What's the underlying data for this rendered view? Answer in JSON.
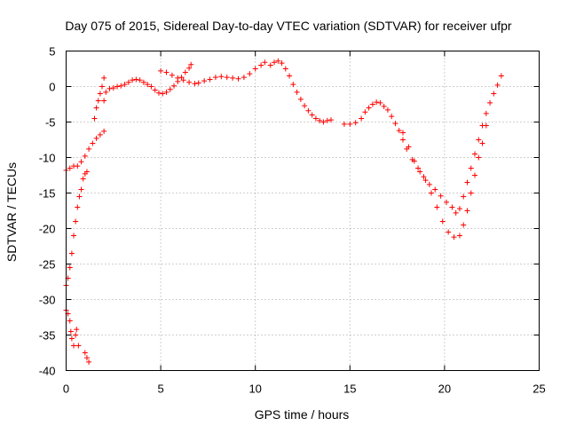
{
  "chart_data": {
    "type": "scatter",
    "title": "Day 075 of 2015, Sidereal Day-to-day VTEC variation (SDTVAR) for receiver ufpr",
    "xlabel": "GPS time / hours",
    "ylabel": "SDTVAR / TECUs",
    "xlim": [
      0,
      25
    ],
    "ylim": [
      -40,
      5
    ],
    "grid": true,
    "marker": "+",
    "x_ticks": [
      "0",
      "5",
      "10",
      "15",
      "20",
      "25"
    ],
    "y_ticks": [
      "5",
      "0",
      "-5",
      "-10",
      "-15",
      "-20",
      "-25",
      "-30",
      "-35",
      "-40"
    ],
    "series": [
      {
        "color": "#ff0000",
        "points": [
          [
            0.0,
            -11.8
          ],
          [
            0.2,
            -11.5
          ],
          [
            0.4,
            -11.2
          ],
          [
            0.6,
            -11.2
          ],
          [
            0.8,
            -10.6
          ],
          [
            1.0,
            -9.8
          ],
          [
            1.2,
            -8.8
          ],
          [
            1.4,
            -8.0
          ],
          [
            1.6,
            -7.3
          ],
          [
            1.8,
            -6.8
          ],
          [
            2.0,
            -6.3
          ],
          [
            2.0,
            -2.0
          ],
          [
            2.1,
            -0.8
          ],
          [
            2.3,
            -0.3
          ],
          [
            2.5,
            -0.2
          ],
          [
            2.7,
            0.0
          ],
          [
            2.9,
            0.1
          ],
          [
            3.1,
            0.3
          ],
          [
            3.3,
            0.6
          ],
          [
            3.5,
            0.9
          ],
          [
            3.7,
            1.0
          ],
          [
            3.9,
            0.9
          ],
          [
            4.1,
            0.6
          ],
          [
            4.3,
            0.3
          ],
          [
            4.5,
            0.0
          ],
          [
            4.7,
            -0.5
          ],
          [
            4.9,
            -0.9
          ],
          [
            5.1,
            -1.0
          ],
          [
            5.3,
            -0.8
          ],
          [
            5.5,
            -0.4
          ],
          [
            5.7,
            0.1
          ],
          [
            5.9,
            0.7
          ],
          [
            6.1,
            1.3
          ],
          [
            6.3,
            2.0
          ],
          [
            6.5,
            2.6
          ],
          [
            6.6,
            3.1
          ],
          [
            5.0,
            2.2
          ],
          [
            5.3,
            2.0
          ],
          [
            5.6,
            1.6
          ],
          [
            5.9,
            1.2
          ],
          [
            6.2,
            0.9
          ],
          [
            6.5,
            0.6
          ],
          [
            6.8,
            0.4
          ],
          [
            7.0,
            0.5
          ],
          [
            7.3,
            0.8
          ],
          [
            7.6,
            1.0
          ],
          [
            7.9,
            1.3
          ],
          [
            8.2,
            1.4
          ],
          [
            8.5,
            1.3
          ],
          [
            8.8,
            1.2
          ],
          [
            9.1,
            1.1
          ],
          [
            9.4,
            1.3
          ],
          [
            9.7,
            1.8
          ],
          [
            10.0,
            2.5
          ],
          [
            10.3,
            3.0
          ],
          [
            10.5,
            3.4
          ],
          [
            10.8,
            3.0
          ],
          [
            11.0,
            3.4
          ],
          [
            11.2,
            3.6
          ],
          [
            11.4,
            3.3
          ],
          [
            11.6,
            2.5
          ],
          [
            11.8,
            1.5
          ],
          [
            12.0,
            0.3
          ],
          [
            12.2,
            -0.8
          ],
          [
            12.4,
            -1.8
          ],
          [
            12.6,
            -2.7
          ],
          [
            12.8,
            -3.4
          ],
          [
            13.0,
            -4.0
          ],
          [
            13.2,
            -4.5
          ],
          [
            13.4,
            -4.8
          ],
          [
            13.6,
            -5.0
          ],
          [
            13.8,
            -4.8
          ],
          [
            14.0,
            -4.7
          ],
          [
            14.7,
            -5.3
          ],
          [
            15.0,
            -5.3
          ],
          [
            15.3,
            -5.1
          ],
          [
            15.6,
            -4.5
          ],
          [
            15.8,
            -3.6
          ],
          [
            16.0,
            -3.0
          ],
          [
            16.2,
            -2.5
          ],
          [
            16.4,
            -2.2
          ],
          [
            16.6,
            -2.3
          ],
          [
            16.8,
            -2.8
          ],
          [
            17.0,
            -3.3
          ],
          [
            17.2,
            -4.2
          ],
          [
            17.4,
            -5.2
          ],
          [
            17.6,
            -6.2
          ],
          [
            17.8,
            -7.5
          ],
          [
            18.0,
            -8.8
          ],
          [
            18.3,
            -10.3
          ],
          [
            18.6,
            -11.5
          ],
          [
            18.9,
            -12.7
          ],
          [
            19.2,
            -13.8
          ],
          [
            19.5,
            -14.5
          ],
          [
            19.8,
            -15.4
          ],
          [
            20.1,
            -16.3
          ],
          [
            20.4,
            -17.0
          ],
          [
            20.6,
            -17.8
          ],
          [
            20.8,
            -17.2
          ],
          [
            21.0,
            -15.5
          ],
          [
            21.2,
            -13.5
          ],
          [
            21.4,
            -11.5
          ],
          [
            21.6,
            -9.5
          ],
          [
            21.8,
            -7.5
          ],
          [
            22.0,
            -5.5
          ],
          [
            22.2,
            -3.8
          ],
          [
            22.4,
            -2.3
          ],
          [
            22.6,
            -1.0
          ],
          [
            22.8,
            0.2
          ],
          [
            23.0,
            1.5
          ],
          [
            17.8,
            -6.5
          ],
          [
            18.1,
            -8.5
          ],
          [
            18.4,
            -10.5
          ],
          [
            18.7,
            -12.0
          ],
          [
            19.0,
            -13.2
          ],
          [
            19.3,
            -15.0
          ],
          [
            19.6,
            -17.0
          ],
          [
            19.9,
            -19.0
          ],
          [
            20.2,
            -20.5
          ],
          [
            20.5,
            -21.2
          ],
          [
            20.8,
            -21.0
          ],
          [
            21.0,
            -19.5
          ],
          [
            21.2,
            -17.5
          ],
          [
            21.4,
            -15.0
          ],
          [
            21.6,
            -12.5
          ],
          [
            21.8,
            -10.0
          ],
          [
            22.0,
            -8.0
          ],
          [
            22.2,
            -5.5
          ],
          [
            0.0,
            -28.0
          ],
          [
            0.1,
            -27.0
          ],
          [
            0.2,
            -25.5
          ],
          [
            0.3,
            -23.5
          ],
          [
            0.4,
            -21.0
          ],
          [
            0.5,
            -19.0
          ],
          [
            0.6,
            -17.0
          ],
          [
            0.7,
            -15.5
          ],
          [
            0.8,
            -14.5
          ],
          [
            0.9,
            -13.0
          ],
          [
            1.0,
            -12.3
          ],
          [
            1.1,
            -12.0
          ],
          [
            0.0,
            -31.5
          ],
          [
            0.1,
            -32.0
          ],
          [
            0.2,
            -33.0
          ],
          [
            0.25,
            -34.5
          ],
          [
            0.3,
            -35.5
          ],
          [
            0.4,
            -36.5
          ],
          [
            0.5,
            -35.0
          ],
          [
            0.55,
            -34.2
          ],
          [
            0.65,
            -36.5
          ],
          [
            1.0,
            -37.5
          ],
          [
            1.1,
            -38.2
          ],
          [
            1.2,
            -38.8
          ],
          [
            1.5,
            -4.5
          ],
          [
            1.6,
            -3.0
          ],
          [
            1.7,
            -2.0
          ],
          [
            1.8,
            -1.0
          ],
          [
            1.9,
            0.0
          ],
          [
            2.0,
            1.2
          ]
        ]
      }
    ]
  }
}
